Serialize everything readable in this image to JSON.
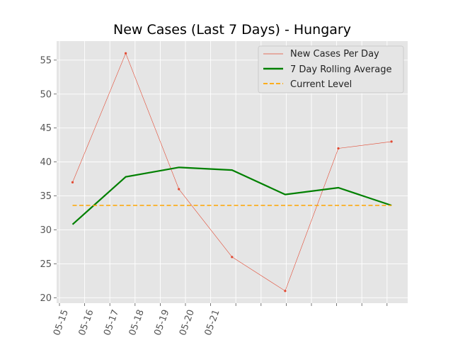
{
  "chart_data": {
    "type": "line",
    "title": "New Cases (Last 7 Days) - Hungary",
    "xlabel": "",
    "ylabel": "",
    "x_tick_labels": [
      "05-15",
      "05-16",
      "05-17",
      "05-18",
      "05-19",
      "05-20",
      "05-21"
    ],
    "ylim": [
      19.2,
      57.8
    ],
    "y_ticks": [
      20,
      25,
      30,
      35,
      40,
      45,
      50,
      55
    ],
    "x": [
      "05-15",
      "05-16",
      "05-17",
      "05-18",
      "05-19",
      "05-20",
      "05-21"
    ],
    "series": [
      {
        "name": "New Cases Per Day",
        "values": [
          37,
          56,
          36,
          26,
          21,
          42,
          43
        ],
        "color": "#e24a33",
        "style": "thin-line-with-dots"
      },
      {
        "name": "7 Day Rolling Average",
        "values": [
          30.8,
          37.8,
          39.2,
          38.8,
          35.2,
          36.2,
          33.6
        ],
        "color": "#008000",
        "style": "thick-line"
      },
      {
        "name": "Current Level",
        "values": [
          33.6,
          33.6,
          33.6,
          33.6,
          33.6,
          33.6,
          33.6
        ],
        "color": "#ffa500",
        "style": "dashed"
      }
    ],
    "grid": true,
    "legend_position": "top-right",
    "background": "#e5e5e5"
  }
}
